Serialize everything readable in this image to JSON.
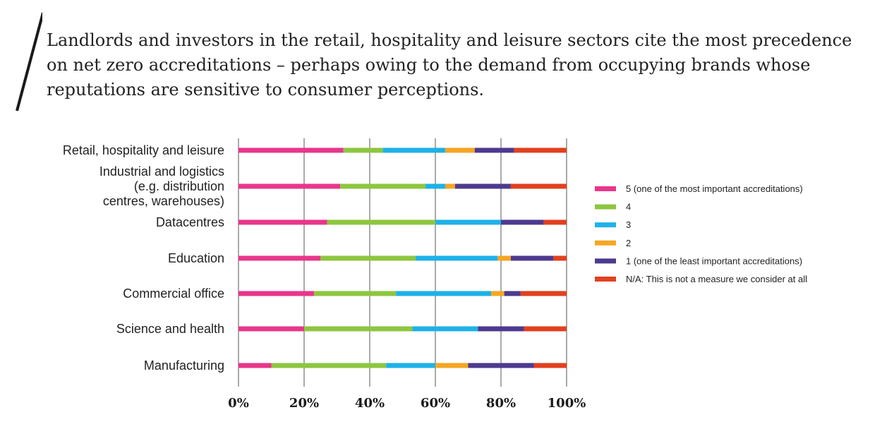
{
  "headline": "Landlords and investors in the retail, hospitality and leisure sectors cite the most precedence on net zero accreditations – perhaps owing to the demand from occupying brands whose reputations are sensitive to consumer perceptions.",
  "chart_data": {
    "type": "bar",
    "orientation": "horizontal",
    "stacked": true,
    "categories": [
      [
        "Retail, hospitality and leisure"
      ],
      [
        "Industrial and logistics",
        "(e.g. distribution",
        "centres, warehouses)"
      ],
      [
        "Datacentres"
      ],
      [
        "Education"
      ],
      [
        "Commercial office"
      ],
      [
        "Science and health"
      ],
      [
        "Manufacturing"
      ]
    ],
    "series": [
      {
        "name": "5 (one of the most important accreditations)",
        "color": "#e8368b",
        "values": [
          32,
          31,
          27,
          25,
          23,
          20,
          10
        ]
      },
      {
        "name": "4",
        "color": "#8dc63f",
        "values": [
          12,
          26,
          33,
          29,
          25,
          33,
          35
        ]
      },
      {
        "name": "3",
        "color": "#1eb1e8",
        "values": [
          19,
          6,
          20,
          25,
          29,
          20,
          15
        ]
      },
      {
        "name": "2",
        "color": "#f5a623",
        "values": [
          9,
          3,
          0,
          4,
          4,
          0,
          10
        ]
      },
      {
        "name": "1 (one of the least important accreditations)",
        "color": "#4d3a8f",
        "values": [
          12,
          17,
          13,
          13,
          5,
          14,
          20
        ]
      },
      {
        "name": "N/A: This is not a measure we consider at all",
        "color": "#e2401f",
        "values": [
          16,
          17,
          7,
          4,
          14,
          13,
          10
        ]
      }
    ],
    "xlim": [
      0,
      100
    ],
    "xticks": [
      "0%",
      "20%",
      "40%",
      "60%",
      "80%",
      "100%"
    ],
    "grid": true,
    "legend_position": "right"
  },
  "colors": {
    "grid": "#555555",
    "text": "#222222"
  }
}
